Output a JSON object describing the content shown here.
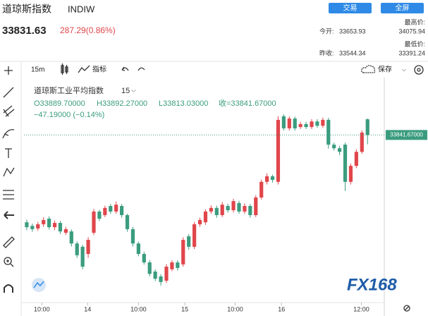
{
  "header": {
    "name": "道琼斯指数",
    "code": "INDIW",
    "trade_button": "交易",
    "fullscreen_button": "全屏",
    "price": "33831.63",
    "change": "287.29(0.86%)",
    "stats": {
      "open_label": "今开:",
      "open": "33653.93",
      "high_label": "最高价:",
      "high": "34075.94",
      "prev_close_label": "昨收:",
      "prev_close": "33544.34",
      "low_label": "最低价:",
      "low": "33391.24"
    }
  },
  "toolbar": {
    "interval": "15m",
    "indicators": "指标",
    "save": "保存"
  },
  "watermark": "FX168",
  "chart_data": {
    "type": "candlestick",
    "title": "道琼斯工业平均指数",
    "interval": "15",
    "ohlc": {
      "open": "O33889.70000",
      "high": "H33892.27000",
      "low": "L33813.03000",
      "close": "收=33841.67000",
      "change": "−47.19000 (−0.14%)"
    },
    "last_price": 33841.67,
    "last_price_label": "33841.67000",
    "up_color": "#e0464b",
    "down_color": "#3a9c7e",
    "ylim": [
      33330,
      34050
    ],
    "xlim": [
      -1,
      64
    ],
    "xticks": [
      {
        "value": 2.7,
        "label": "10:00"
      },
      {
        "value": 10.9,
        "label": "14"
      },
      {
        "value": 20,
        "label": "10:00"
      },
      {
        "value": 28.3,
        "label": "15"
      },
      {
        "value": 37.3,
        "label": "10:00"
      },
      {
        "value": 45.6,
        "label": "16"
      },
      {
        "value": 59.9,
        "label": "12:00"
      }
    ],
    "open": [
      33574,
      33563,
      33555,
      33568,
      33585,
      33559,
      33572,
      33542,
      33546,
      33509,
      33499,
      33477,
      33542,
      33607,
      33596,
      33624,
      33607,
      33624,
      33596,
      33553,
      33509,
      33477,
      33451,
      33423,
      33408,
      33395,
      33430,
      33451,
      33445,
      33531,
      33499,
      33568,
      33574,
      33607,
      33618,
      33596,
      33624,
      33611,
      33633,
      33607,
      33624,
      33596,
      33650,
      33698,
      33715,
      33698,
      33899,
      33862,
      33892,
      33866,
      33875,
      33866,
      33883,
      33870,
      33888,
      33812,
      33801,
      33812,
      33698,
      33747,
      33790,
      33889.7
    ],
    "high": [
      33582,
      33570,
      33575,
      33590,
      33592,
      33580,
      33578,
      33560,
      33552,
      33515,
      33505,
      33528,
      33615,
      33612,
      33625,
      33630,
      33638,
      33630,
      33600,
      33560,
      33515,
      33484,
      33458,
      33430,
      33415,
      33446,
      33458,
      33458,
      33528,
      33538,
      33575,
      33588,
      33614,
      33626,
      33625,
      33636,
      33631,
      33646,
      33640,
      33632,
      33630,
      33657,
      33705,
      33724,
      33720,
      33899,
      33905,
      33899,
      33898,
      33882,
      33882,
      33890,
      33890,
      33895,
      33894,
      33818,
      33808,
      33818,
      33754,
      33798,
      33856,
      33892.27
    ],
    "low": [
      33550,
      33545,
      33548,
      33560,
      33552,
      33550,
      33538,
      33535,
      33500,
      33465,
      33430,
      33465,
      33535,
      33578,
      33590,
      33600,
      33600,
      33588,
      33545,
      33500,
      33470,
      33444,
      33408,
      33394,
      33380,
      33388,
      33424,
      33426,
      33438,
      33490,
      33492,
      33560,
      33566,
      33600,
      33588,
      33590,
      33604,
      33604,
      33600,
      33600,
      33588,
      33590,
      33644,
      33690,
      33696,
      33690,
      33855,
      33855,
      33855,
      33860,
      33860,
      33860,
      33864,
      33864,
      33800,
      33794,
      33780,
      33670,
      33690,
      33740,
      33784,
      33813.03
    ],
    "close": [
      33559,
      33553,
      33568,
      33581,
      33559,
      33572,
      33546,
      33553,
      33509,
      33473,
      33438,
      33520,
      33607,
      33585,
      33618,
      33607,
      33628,
      33596,
      33553,
      33509,
      33477,
      33451,
      33416,
      33401,
      33391,
      33438,
      33451,
      33434,
      33520,
      33499,
      33568,
      33581,
      33607,
      33618,
      33596,
      33628,
      33611,
      33639,
      33607,
      33624,
      33596,
      33650,
      33698,
      33715,
      33704,
      33888,
      33862,
      33892,
      33862,
      33875,
      33866,
      33883,
      33870,
      33888,
      33812,
      33801,
      33790,
      33698,
      33747,
      33790,
      33849,
      33841.67
    ]
  }
}
